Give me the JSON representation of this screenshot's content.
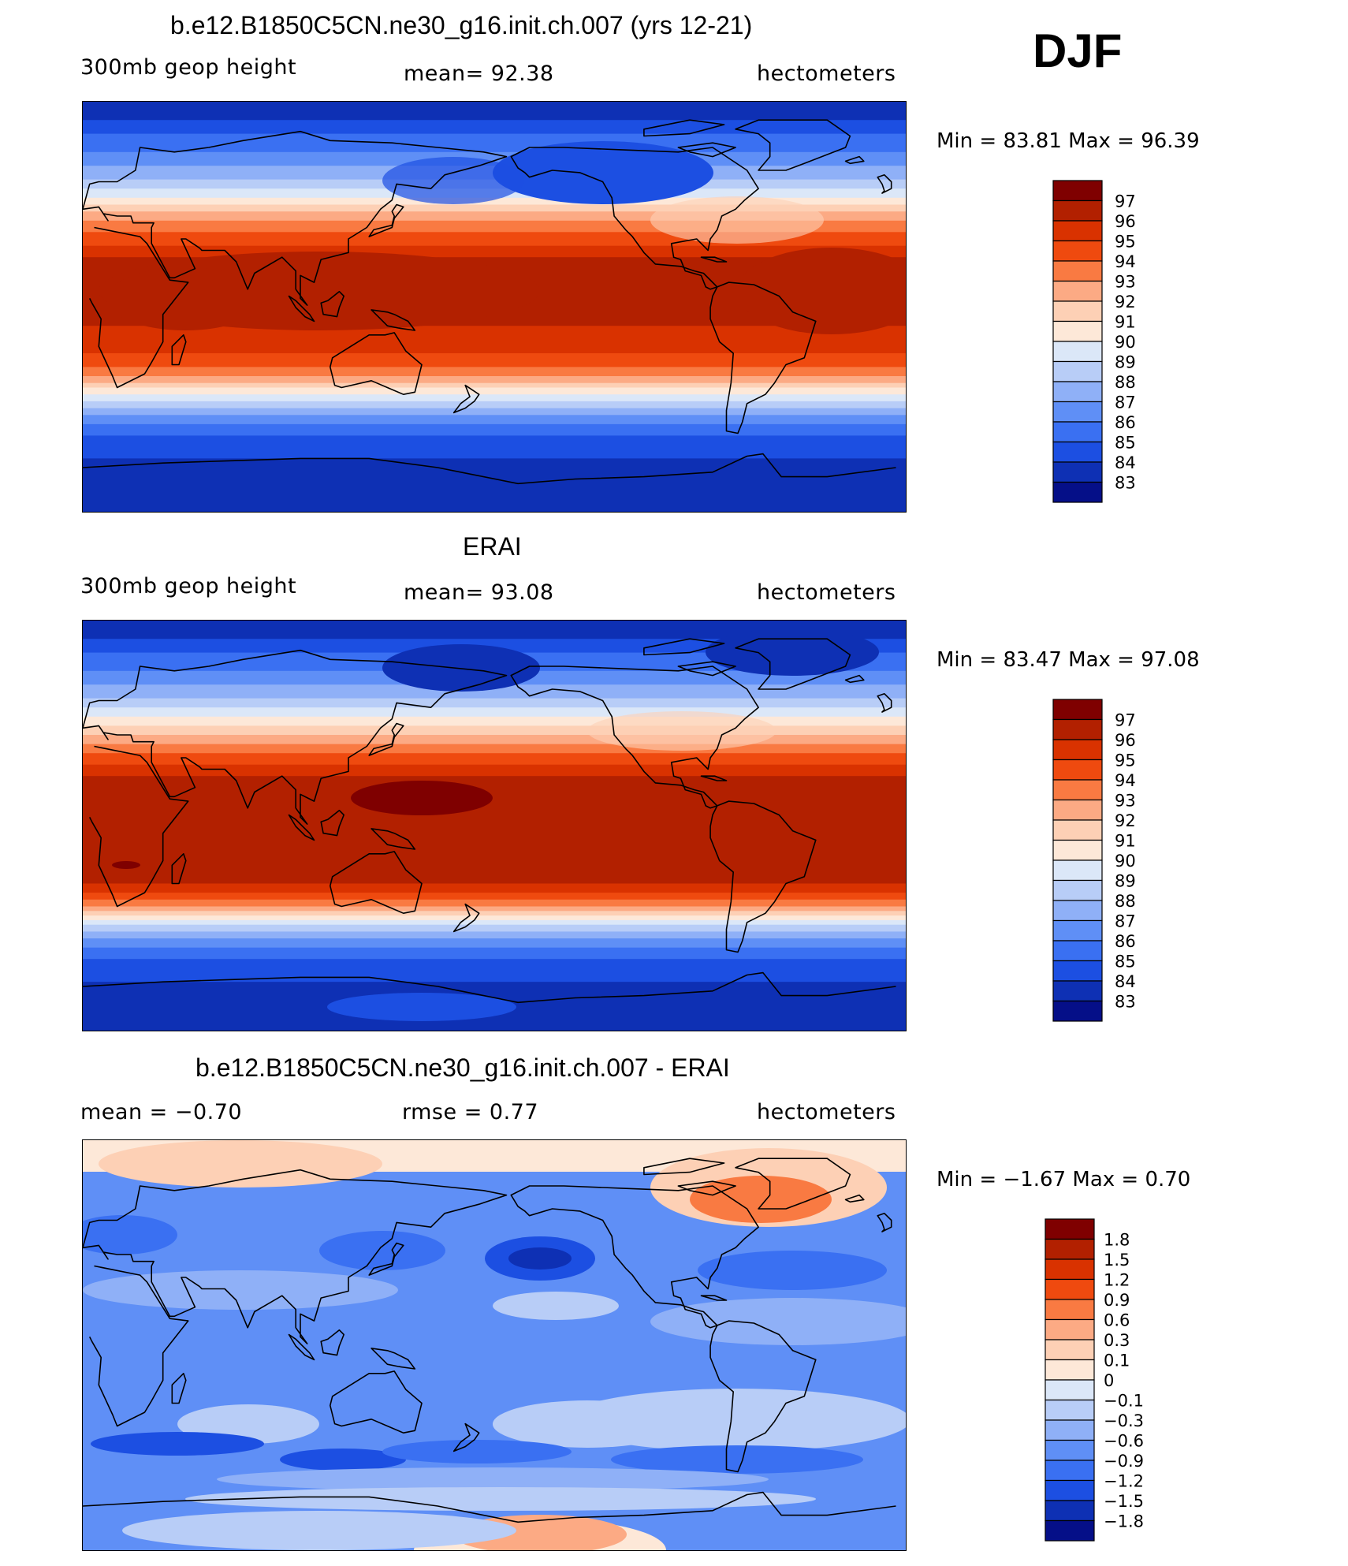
{
  "season": "DJF",
  "panels": [
    {
      "id": "model",
      "title": "b.e12.B1850C5CN.ne30_g16.init.ch.007 (yrs 12-21)",
      "left_label": "300mb  geop  height",
      "center_label": "mean=   92.38",
      "right_label": "hectometers",
      "min_max": "Min  =    83.81  Max  =    96.39",
      "colorbar_labels": [
        "97",
        "96",
        "95",
        "94",
        "93",
        "92",
        "91",
        "90",
        "89",
        "88",
        "87",
        "86",
        "85",
        "84",
        "83"
      ]
    },
    {
      "id": "obs",
      "title": "ERAI",
      "left_label": "300mb  geop  height",
      "center_label": "mean=   93.08",
      "right_label": "hectometers",
      "min_max": "Min  =    83.47  Max  =    97.08",
      "colorbar_labels": [
        "97",
        "96",
        "95",
        "94",
        "93",
        "92",
        "91",
        "90",
        "89",
        "88",
        "87",
        "86",
        "85",
        "84",
        "83"
      ]
    },
    {
      "id": "diff",
      "title": "b.e12.B1850C5CN.ne30_g16.init.ch.007 - ERAI",
      "left_label": "mean  =    −0.70",
      "center_label": "rmse  =     0.77",
      "right_label": "hectometers",
      "min_max": "Min  =    −1.67  Max  =     0.70",
      "colorbar_labels": [
        "1.8",
        "1.5",
        "1.2",
        "0.9",
        "0.6",
        "0.3",
        "0.1",
        "0",
        "−0.1",
        "−0.3",
        "−0.6",
        "−0.9",
        "−1.2",
        "−1.5",
        "−1.8"
      ]
    }
  ],
  "colors": {
    "palette": [
      "#7f0000",
      "#b22000",
      "#d93200",
      "#ef4a0f",
      "#f97a42",
      "#fcaa84",
      "#fdd0b5",
      "#fde8d8",
      "#dbe7f8",
      "#b8cdf7",
      "#8fb0f7",
      "#5f8ff6",
      "#3a70f2",
      "#1c4fe2",
      "#0e30b4",
      "#050f88"
    ],
    "outline": "#000000"
  }
}
